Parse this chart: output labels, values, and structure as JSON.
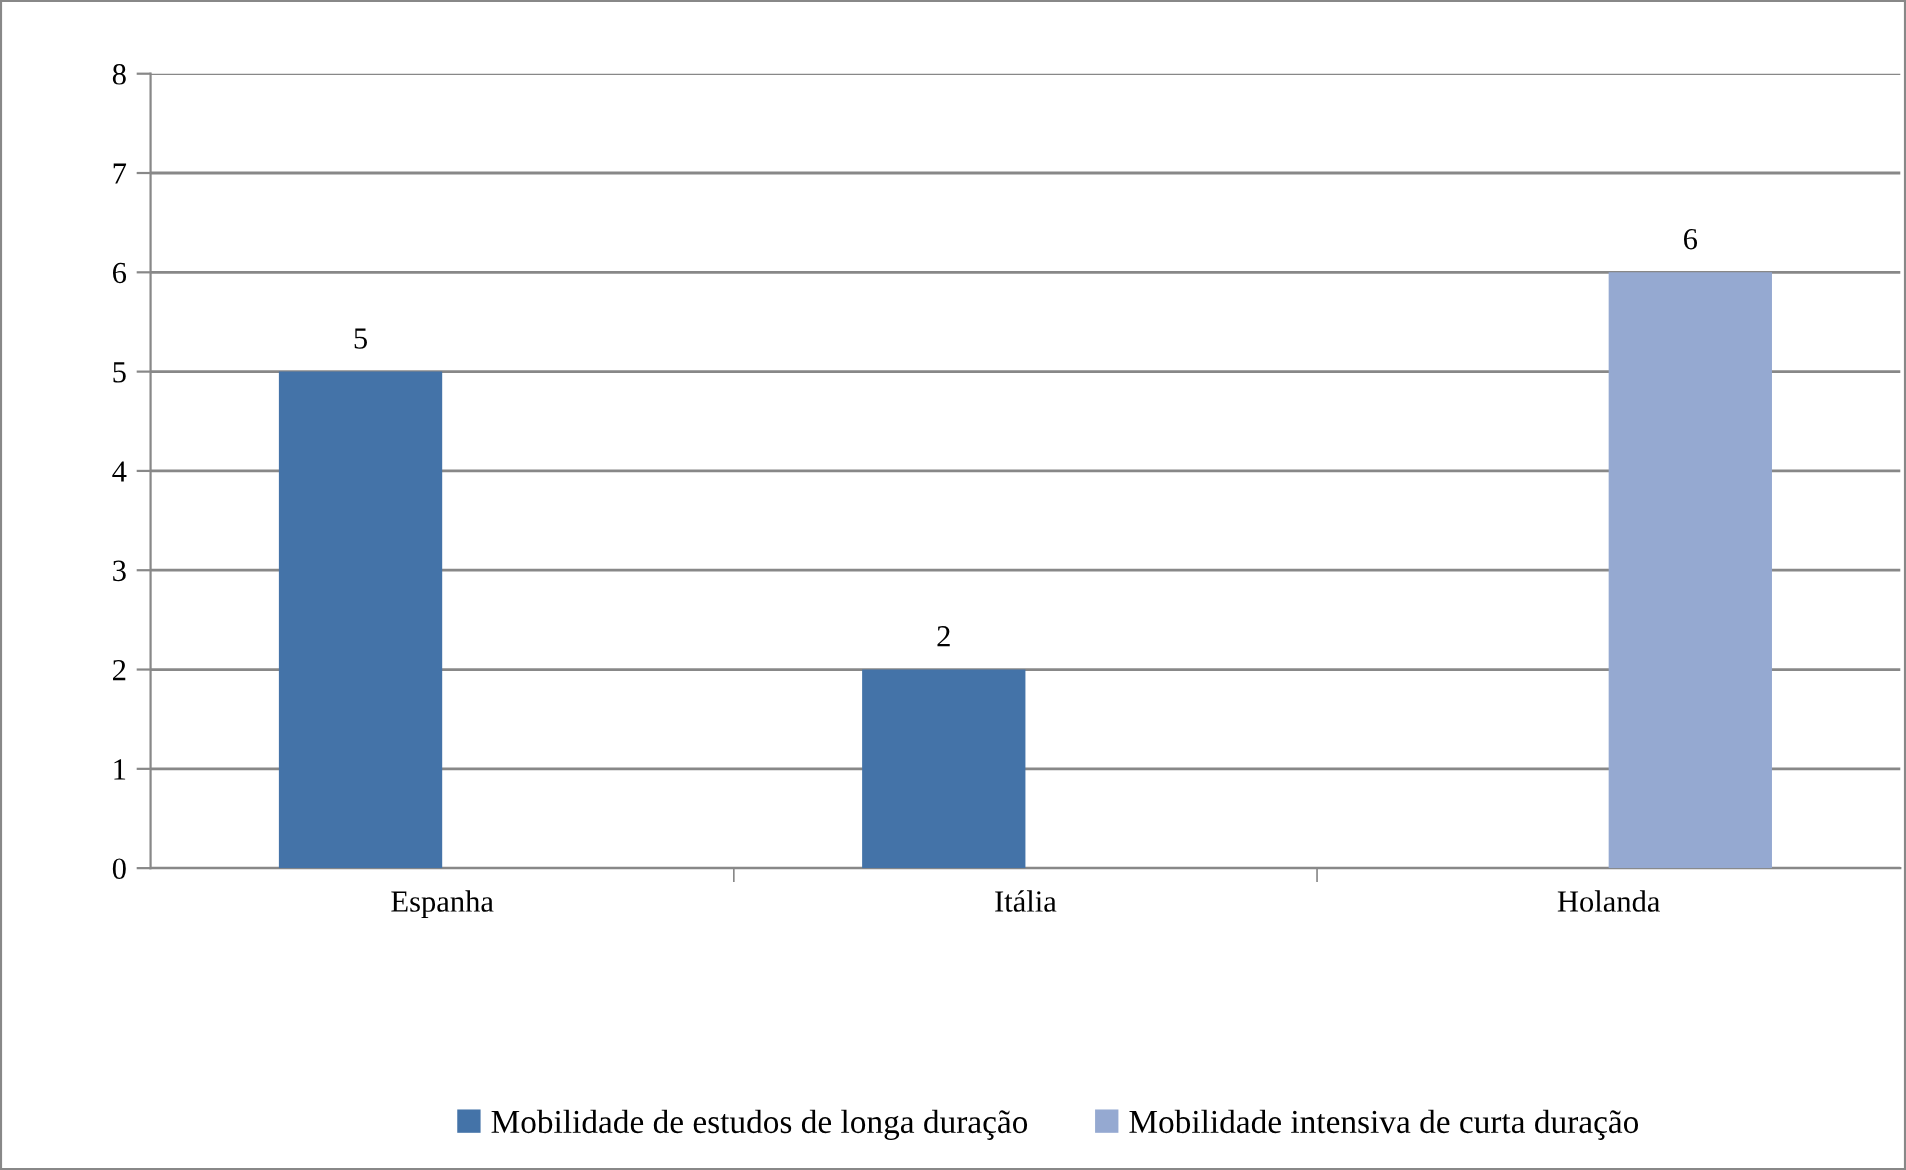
{
  "chart_data": {
    "type": "bar",
    "categories": [
      "Espanha",
      "Itália",
      "Holanda"
    ],
    "series": [
      {
        "name": "Mobilidade de estudos de longa duração",
        "color": "#4473a8",
        "values": [
          5,
          2,
          null
        ]
      },
      {
        "name": "Mobilidade intensiva de curta duração",
        "color": "#95a9d1",
        "values": [
          null,
          null,
          6
        ]
      }
    ],
    "ylim": [
      0,
      8
    ],
    "yticks": [
      0,
      1,
      2,
      3,
      4,
      5,
      6,
      7,
      8
    ],
    "grid": "y",
    "legend": "bottom",
    "data_labels": true
  }
}
